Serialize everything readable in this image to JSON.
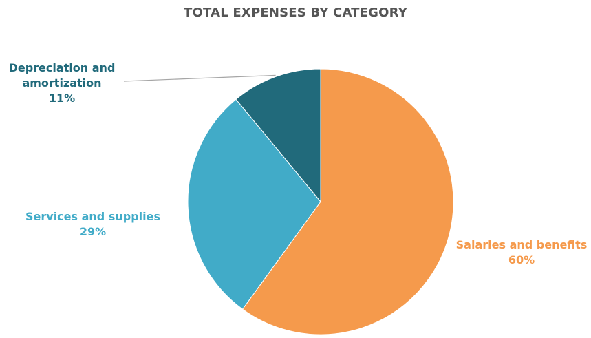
{
  "chart_data": {
    "type": "pie",
    "title": "TOTAL EXPENSES BY CATEGORY",
    "slices": [
      {
        "name": "Salaries and benefits",
        "label": "Salaries and benefits",
        "value": 60,
        "value_label": "60%",
        "color": "#F59A4C"
      },
      {
        "name": "Services and supplies",
        "label": "Services and supplies",
        "value": 29,
        "value_label": "29%",
        "color": "#41ABC8"
      },
      {
        "name": "Depreciation and amortization",
        "label_lines": [
          "Depreciation and",
          "amortization"
        ],
        "value": 11,
        "value_label": "11%",
        "color": "#216A7B"
      }
    ],
    "start_angle": "12 o'clock",
    "direction": "clockwise",
    "legend": "none"
  }
}
